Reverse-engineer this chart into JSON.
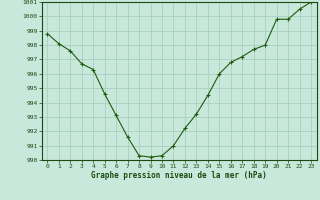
{
  "x": [
    0,
    1,
    2,
    3,
    4,
    5,
    6,
    7,
    8,
    9,
    10,
    11,
    12,
    13,
    14,
    15,
    16,
    17,
    18,
    19,
    20,
    21,
    22,
    23
  ],
  "y": [
    998.8,
    998.1,
    997.6,
    996.7,
    996.3,
    994.6,
    993.1,
    991.6,
    990.3,
    990.2,
    990.3,
    991.0,
    992.2,
    993.2,
    994.5,
    996.0,
    996.8,
    997.2,
    997.7,
    998.0,
    999.8,
    999.8,
    1000.5,
    1001.0
  ],
  "ylim": [
    990,
    1001
  ],
  "yticks": [
    990,
    991,
    992,
    993,
    994,
    995,
    996,
    997,
    998,
    999,
    1000,
    1001
  ],
  "xticks": [
    0,
    1,
    2,
    3,
    4,
    5,
    6,
    7,
    8,
    9,
    10,
    11,
    12,
    13,
    14,
    15,
    16,
    17,
    18,
    19,
    20,
    21,
    22,
    23
  ],
  "line_color": "#1e5c0e",
  "marker_color": "#1e5c0e",
  "bg_color": "#c8e8dc",
  "grid_color": "#a0ccbc",
  "xlabel": "Graphe pression niveau de la mer (hPa)",
  "xlabel_color": "#1a4a10",
  "tick_color": "#1a4a10",
  "figsize": [
    3.2,
    2.0
  ],
  "dpi": 100
}
